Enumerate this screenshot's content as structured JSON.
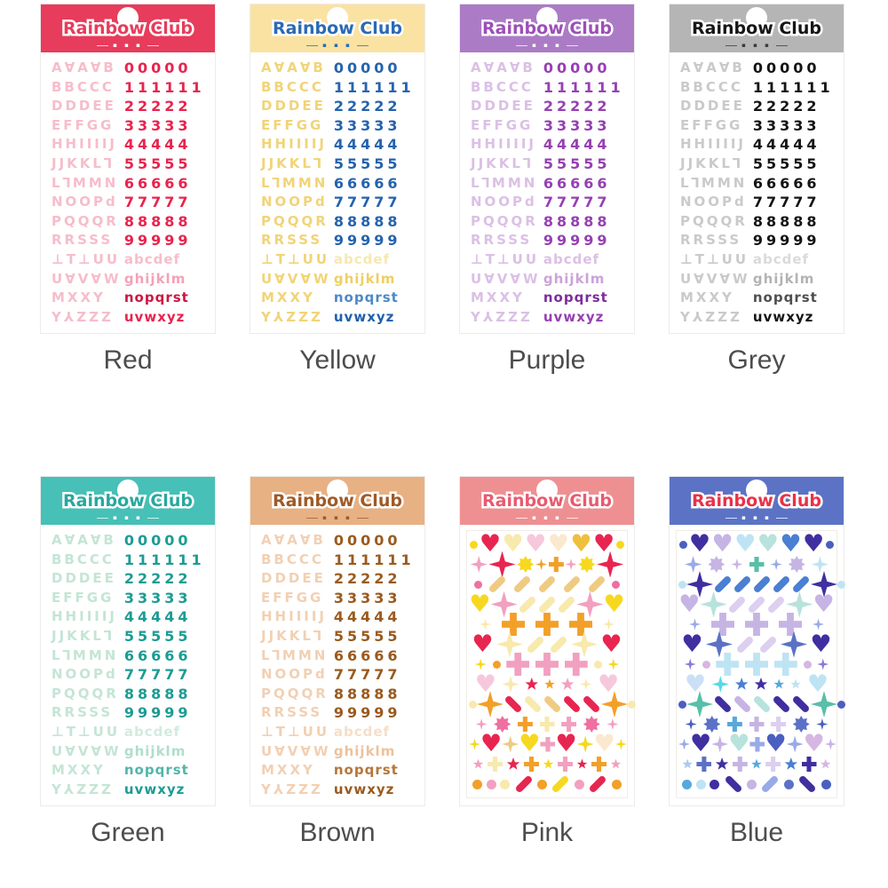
{
  "page": {
    "background": "#ffffff",
    "label_color": "#4d4d4d"
  },
  "sheets": [
    {
      "name": "red",
      "label": "Red",
      "title": "Rainbow Club",
      "subtitle": "▪ ▪ ▪",
      "type": "letters",
      "colors": {
        "band": "#E73C5B",
        "title": "#E73C5B",
        "subtitle": "#FFFFFF",
        "letters": "#F6BDCB",
        "numbers": "#E8244E",
        "lower_abcdef": "#F6BDCB",
        "lower_ghijklm": "#F2A2B8",
        "lower_nopqrst": "#CC1742",
        "lower_uvwxyz": "#E8244E"
      },
      "letter_rows": [
        "A∀A∀B",
        "BBCCC",
        "DDDEE",
        "EFFGG",
        "HHIIIIJ",
        "JJKKL⅂",
        "L⅂MMN",
        "NOOPd",
        "PQQQR",
        "RRSSS",
        "⊥T⊥UU",
        "U∀V∀W",
        "MXXY",
        "Y⅄ZZZ"
      ],
      "number_rows": [
        "00000",
        "111111",
        "22222",
        "33333",
        "44444",
        "55555",
        "66666",
        "77777",
        "88888",
        "99999",
        "abcdef",
        "ghijklm",
        "nopqrst",
        "uvwxyz"
      ]
    },
    {
      "name": "yellow",
      "label": "Yellow",
      "title": "Rainbow Club",
      "subtitle": "▪ ▪ ▪",
      "type": "letters",
      "colors": {
        "band": "#FAE2A2",
        "title": "#2A6AB4",
        "subtitle": "#2A6AB4",
        "letters": "#F1D478",
        "numbers": "#2563AE",
        "lower_abcdef": "#F6E8B0",
        "lower_ghijklm": "#EDCF66",
        "lower_nopqrst": "#4E88C8",
        "lower_uvwxyz": "#2060AC"
      },
      "letter_rows": [
        "A∀A∀B",
        "BBCCC",
        "DDDEE",
        "EFFGG",
        "HHIIIIJ",
        "JJKKL⅂",
        "L⅂MMN",
        "NOOPd",
        "PQQQR",
        "RRSSS",
        "⊥T⊥UU",
        "U∀V∀W",
        "MXXY",
        "Y⅄ZZZ"
      ],
      "number_rows": [
        "00000",
        "111111",
        "22222",
        "33333",
        "44444",
        "55555",
        "66666",
        "77777",
        "88888",
        "99999",
        "abcdef",
        "ghijklm",
        "nopqrst",
        "uvwxyz"
      ]
    },
    {
      "name": "purple",
      "label": "Purple",
      "title": "Rainbow Club",
      "subtitle": "▪ ▪ ▪",
      "type": "letters",
      "colors": {
        "band": "#AB7CC5",
        "title": "#9C4FB8",
        "subtitle": "#FFFFFF",
        "letters": "#DBC0E5",
        "numbers": "#9640B2",
        "lower_abcdef": "#DBC0E5",
        "lower_ghijklm": "#CBA3D8",
        "lower_nopqrst": "#7C2C9C",
        "lower_uvwxyz": "#9640B2"
      },
      "letter_rows": [
        "A∀A∀B",
        "BBCCC",
        "DDDEE",
        "EFFGG",
        "HHIIIIJ",
        "JJKKL⅂",
        "L⅂MMN",
        "NOOPd",
        "PQQQR",
        "RRSSS",
        "⊥T⊥UU",
        "U∀V∀W",
        "MXXY",
        "Y⅄ZZZ"
      ],
      "number_rows": [
        "00000",
        "111111",
        "22222",
        "33333",
        "44444",
        "55555",
        "66666",
        "77777",
        "88888",
        "99999",
        "abcdef",
        "ghijklm",
        "nopqrst",
        "uvwxyz"
      ]
    },
    {
      "name": "grey",
      "label": "Grey",
      "title": "Rainbow Club",
      "subtitle": "▪ ▪ ▪",
      "type": "letters",
      "colors": {
        "band": "#B5B5B5",
        "title": "#161616",
        "subtitle": "#3A3A3A",
        "letters": "#CACACA",
        "numbers": "#141414",
        "lower_abcdef": "#DADADA",
        "lower_ghijklm": "#B3B3B3",
        "lower_nopqrst": "#4F4F4F",
        "lower_uvwxyz": "#141414"
      },
      "letter_rows": [
        "A∀A∀B",
        "BBCCC",
        "DDDEE",
        "EFFGG",
        "HHIIIIJ",
        "JJKKL⅂",
        "L⅂MMN",
        "NOOPd",
        "PQQQR",
        "RRSSS",
        "⊥T⊥UU",
        "U∀V∀W",
        "MXXY",
        "Y⅄ZZZ"
      ],
      "number_rows": [
        "00000",
        "111111",
        "22222",
        "33333",
        "44444",
        "55555",
        "66666",
        "77777",
        "88888",
        "99999",
        "abcdef",
        "ghijklm",
        "nopqrst",
        "uvwxyz"
      ]
    },
    {
      "name": "green",
      "label": "Green",
      "title": "Rainbow Club",
      "subtitle": "▪ ▪ ▪",
      "type": "letters",
      "colors": {
        "band": "#47C0B7",
        "title": "#28A89E",
        "subtitle": "#FFFFFF",
        "letters": "#C4E5D5",
        "numbers": "#1C9C93",
        "lower_abcdef": "#D2EBDF",
        "lower_ghijklm": "#AFDECA",
        "lower_nopqrst": "#52B5A9",
        "lower_uvwxyz": "#1C9C93"
      },
      "letter_rows": [
        "A∀A∀B",
        "BBCCC",
        "DDDEE",
        "EFFGG",
        "HHIIIIJ",
        "JJKKL⅂",
        "L⅂MMN",
        "NOOPd",
        "PQQQR",
        "RRSSS",
        "⊥T⊥UU",
        "U∀V∀W",
        "MXXY",
        "Y⅄ZZZ"
      ],
      "number_rows": [
        "00000",
        "111111",
        "22222",
        "33333",
        "44444",
        "55555",
        "66666",
        "77777",
        "88888",
        "99999",
        "abcdef",
        "ghijklm",
        "nopqrst",
        "uvwxyz"
      ]
    },
    {
      "name": "brown",
      "label": "Brown",
      "title": "Rainbow Club",
      "subtitle": "▪ ▪ ▪",
      "type": "letters",
      "colors": {
        "band": "#E7B184",
        "title": "#9F5A26",
        "subtitle": "#9F5A26",
        "letters": "#F2D0B3",
        "numbers": "#9A5A1E",
        "lower_abcdef": "#F6DEC8",
        "lower_ghijklm": "#ECC29B",
        "lower_nopqrst": "#B5763A",
        "lower_uvwxyz": "#9A5A1E"
      },
      "letter_rows": [
        "A∀A∀B",
        "BBCCC",
        "DDDEE",
        "EFFGG",
        "HHIIIIJ",
        "JJKKL⅂",
        "L⅂MMN",
        "NOOPd",
        "PQQQR",
        "RRSSS",
        "⊥T⊥UU",
        "U∀V∀W",
        "MXXY",
        "Y⅄ZZZ"
      ],
      "number_rows": [
        "00000",
        "111111",
        "22222",
        "33333",
        "44444",
        "55555",
        "66666",
        "77777",
        "88888",
        "99999",
        "abcdef",
        "ghijklm",
        "nopqrst",
        "uvwxyz"
      ]
    },
    {
      "name": "pink",
      "label": "Pink",
      "title": "Rainbow Club",
      "subtitle": "▪ ▪ ▪",
      "type": "deco",
      "colors": {
        "band": "#EE9092",
        "title": "#E85A70",
        "subtitle": "#FFFFFF"
      },
      "deco_rows": [
        [
          "dot:#F7D820:sm",
          "heart:#E82550:lg",
          "heart:#F8E9AC:lg",
          "heart:#F6C8DC:lg",
          "heart:#FAE9CE:lg",
          "heart:#EFBF3E:lg",
          "heart:#E82550:lg",
          "dot:#F7D820:sm"
        ],
        [
          "spark:#F2A0C0",
          "spark:#E82550:lg",
          "burst:#F7D820",
          "spark:#F2A028:sm",
          "cross:#F2A028",
          "spark:#F2A0C0:sm",
          "burst:#F7D820",
          "spark:#E82550:lg"
        ],
        [
          "dot:#EE6FA0:sm",
          "dash:#EFCB82",
          "dash:#EFCB82",
          "dash:#EFCB82",
          "dash:#EFCB82",
          "dash:#EFCB82",
          "dot:#EE6FA0:sm"
        ],
        [
          "heart:#F7D820:lg",
          "spark:#F2A0C0:lg",
          "dash:#F8E9AC",
          "dash:#F8E9AC",
          "dash:#F8E9AC",
          "spark:#F2A0C0:lg",
          "heart:#F7D820:lg"
        ],
        [
          "spark:#F8E9AC:sm",
          "cross:#F2A028:lg",
          "cross:#F2A028:lg",
          "cross:#F2A028:lg",
          "spark:#F8E9AC:sm"
        ],
        [
          "heart:#E82550:lg",
          "spark:#F8E9AC:lg",
          "dash:#F8E9AC",
          "dash:#F8E9AC",
          "spark:#F8E9AC:lg",
          "heart:#E82550:lg"
        ],
        [
          "spark:#F7D820:sm",
          "dot:#F2A028:sm",
          "cross:#F2A0C0:lg",
          "cross:#F2A0C0:lg",
          "cross:#F2A0C0:lg",
          "dot:#F8E9AC:sm",
          "spark:#F7D820:sm"
        ],
        [
          "heart:#F6C8DC:lg",
          "spark:#F8E9AC",
          "star:#E82550",
          "star:#F2A028:sm",
          "star:#F2A0C0",
          "spark:#F8E9AC:sm",
          "heart:#F6C8DC:lg"
        ],
        [
          "dot:#F8E9AC:sm",
          "spark:#F2A028:lg",
          "dashb:#E82550",
          "dashb:#F8E9AC",
          "dashb:#EFCB82",
          "dashb:#E82550",
          "dashb:#E82550",
          "spark:#F2A028:lg",
          "dot:#F8E9AC:sm"
        ],
        [
          "spark:#F2A0C0:sm",
          "burst:#EE6FA0",
          "cross:#F2A028",
          "cross:#F8E9AC",
          "cross:#F2A0C0",
          "burst:#EE6FA0",
          "spark:#F2A0C0:sm"
        ],
        [
          "spark:#F7D820:sm",
          "heart:#E82550:lg",
          "spark:#EFCB82",
          "heart:#F7D820:lg",
          "cross:#F2A0C0",
          "heart:#E82550:lg",
          "spark:#F7D820",
          "heart:#FAE9CE:lg",
          "spark:#F7D820:sm"
        ],
        [
          "star:#F2A0C0:sm",
          "cross:#F8E9AC",
          "star:#E82550",
          "cross:#F2A028",
          "star:#F7D820:sm",
          "cross:#F2A0C0",
          "star:#E82550:sm",
          "cross:#F2A028",
          "star:#F2A0C0:sm"
        ],
        [
          "dot:#F2A028",
          "dot:#F2A0C0",
          "dot:#F8E9AC",
          "dash:#E82550",
          "dot:#F2A028",
          "dash:#F7D820",
          "dot:#F2A0C0",
          "dash:#E82550",
          "dot:#F2A028"
        ]
      ]
    },
    {
      "name": "blue",
      "label": "Blue",
      "title": "Rainbow Club",
      "subtitle": "▪ ▪ ▪",
      "type": "deco",
      "colors": {
        "band": "#5C73C5",
        "title": "#E83248",
        "subtitle": "#FFFFFF"
      },
      "deco_rows": [
        [
          "dot:#4A5FC0:sm",
          "heart:#3F2FA0:lg",
          "heart:#C6B4E4:lg",
          "heart:#BEE4F4:lg",
          "heart:#B8E2DC:lg",
          "heart:#4A7FD2:lg",
          "heart:#3F2FA0:lg",
          "dot:#4A5FC0:sm"
        ],
        [
          "spark:#98AAE8",
          "burst:#C6B4E4",
          "spark:#C6B4E4:sm",
          "cross:#58BFA8",
          "spark:#98AAE8:sm",
          "burst:#C6B4E4",
          "spark:#BEE4F4"
        ],
        [
          "dot:#BEE4F4:sm",
          "spark:#3F2FA0:lg",
          "dash:#4A7FD2",
          "dash:#4A7FD2",
          "dash:#4A7FD2",
          "dash:#4A7FD2",
          "dash:#4A7FD2",
          "spark:#3F2FA0:lg",
          "dot:#BEE4F4:sm"
        ],
        [
          "heart:#C6B4E4:lg",
          "spark:#B8E2DC:lg",
          "dash:#DCCFF0",
          "dash:#DCCFF0",
          "dash:#DCCFF0",
          "spark:#B8E2DC:lg",
          "heart:#C6B4E4:lg"
        ],
        [
          "spark:#98AAE8:sm",
          "cross:#C6B4E4:lg",
          "cross:#C6B4E4:lg",
          "cross:#C6B4E4:lg",
          "spark:#98AAE8:sm"
        ],
        [
          "heart:#3F2FA0:lg",
          "spark:#5B71C6:lg",
          "dash:#DCCFF0",
          "dash:#DCCFF0",
          "spark:#5B71C6:lg",
          "heart:#3F2FA0:lg"
        ],
        [
          "spark:#8A7AD4:sm",
          "dot:#D6B6E2:sm",
          "cross:#BEE4F4:lg",
          "cross:#BEE4F4:lg",
          "cross:#BEE4F4:lg",
          "dot:#D6B6E2:sm",
          "spark:#8A7AD4:sm"
        ],
        [
          "heart:#CBDFF6:lg",
          "spark:#57D8E8",
          "star:#4A7FD2",
          "star:#3F2FA0",
          "star:#57A8DC:sm",
          "star:#BEE4F4:sm",
          "heart:#BEE4F4:lg"
        ],
        [
          "dot:#4A5FC0:sm",
          "spark:#58BFA8:lg",
          "dashb:#3F2FA0",
          "dashb:#C6B4E4",
          "dashb:#B8E2DC",
          "dashb:#3F2FA0",
          "dashb:#3F2FA0",
          "spark:#58BFA8:lg",
          "dot:#4A5FC0:sm"
        ],
        [
          "spark:#4A5FC0:sm",
          "burst:#5B71C6",
          "cross:#57A8DC",
          "cross:#C6B4E4",
          "cross:#DCCFF0",
          "burst:#5B71C6",
          "spark:#4A5FC0:sm"
        ],
        [
          "spark:#98AAE8:sm",
          "heart:#3F2FA0:lg",
          "spark:#C6B4E4",
          "heart:#B8E2DC:lg",
          "cross:#98AAE8",
          "heart:#4A5FC0:lg",
          "spark:#98AAE8",
          "heart:#D6B6E2:lg",
          "spark:#C6B4E4:sm"
        ],
        [
          "star:#A8CBF0:sm",
          "cross:#5B71C6",
          "star:#3F2FA0",
          "cross:#C6B4E4",
          "star:#57A8DC:sm",
          "cross:#DCCFF0",
          "star:#4A7FD2",
          "cross:#3F2FA0",
          "star:#D6B6E2:sm"
        ],
        [
          "dot:#57A8DC",
          "dot:#BEE4F4",
          "dot:#3F2FA0",
          "dashb:#3F2FA0",
          "dot:#C6B4E4",
          "dash:#98AAE8",
          "dot:#5B71C6",
          "dashb:#3F2FA0",
          "dot:#4A5FC0"
        ]
      ]
    }
  ]
}
